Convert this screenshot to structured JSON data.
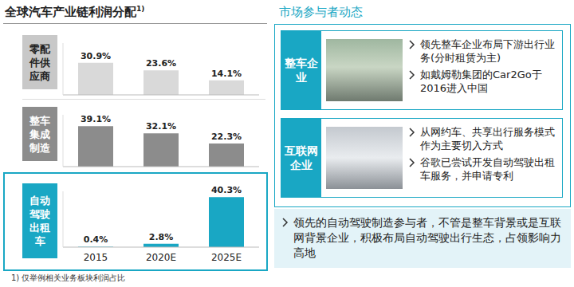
{
  "title": "全球汽车产业链利润分配",
  "title_marker": "1)",
  "footnote": "1) 仅举例相关业务板块利润占比",
  "chart_data": [
    {
      "type": "bar",
      "title": "零配件供应商",
      "categories": [
        null,
        null,
        null
      ],
      "values": [
        30.9,
        23.6,
        14.1
      ],
      "value_labels": [
        "30.9%",
        "23.6%",
        "14.1%"
      ],
      "color": "#d9d9d9",
      "ylim": [
        0,
        50
      ],
      "data_labels": true,
      "tick_labels": false
    },
    {
      "type": "bar",
      "title": "整车集成制造",
      "categories": [
        null,
        null,
        null
      ],
      "values": [
        39.1,
        32.1,
        22.3
      ],
      "value_labels": [
        "39.1%",
        "32.1%",
        "22.3%"
      ],
      "color": "#8c8c8c",
      "ylim": [
        0,
        50
      ],
      "data_labels": true,
      "tick_labels": false
    },
    {
      "type": "bar",
      "title": "自动驾驶出租车",
      "categories": [
        "2015",
        "2020E",
        "2025E"
      ],
      "values": [
        0.4,
        2.8,
        40.3
      ],
      "value_labels": [
        "0.4%",
        "2.8%",
        "40.3%"
      ],
      "color": "#19a7c4",
      "ylim": [
        0,
        45
      ],
      "data_labels": true,
      "tick_labels": "x"
    }
  ],
  "panel": {
    "title": "市场参与者动态",
    "groups": [
      {
        "label": "整车企业",
        "bullets": [
          "领先整车企业布局下游出行业务(分时租赁为主)",
          "如戴姆勒集团的Car2Go于2016进入中国"
        ]
      },
      {
        "label": "互联网企业",
        "bullets": [
          "从网约车、共享出行服务模式作为主要切入方式",
          "谷歌已尝试开发自动驾驶出租车服务，并申请专利"
        ]
      }
    ],
    "conclusion": "领先的自动驾驶制造参与者，不管是整车背景或是互联网背景企业，积极布局自动驾驶出行生态，占领影响力高地"
  }
}
